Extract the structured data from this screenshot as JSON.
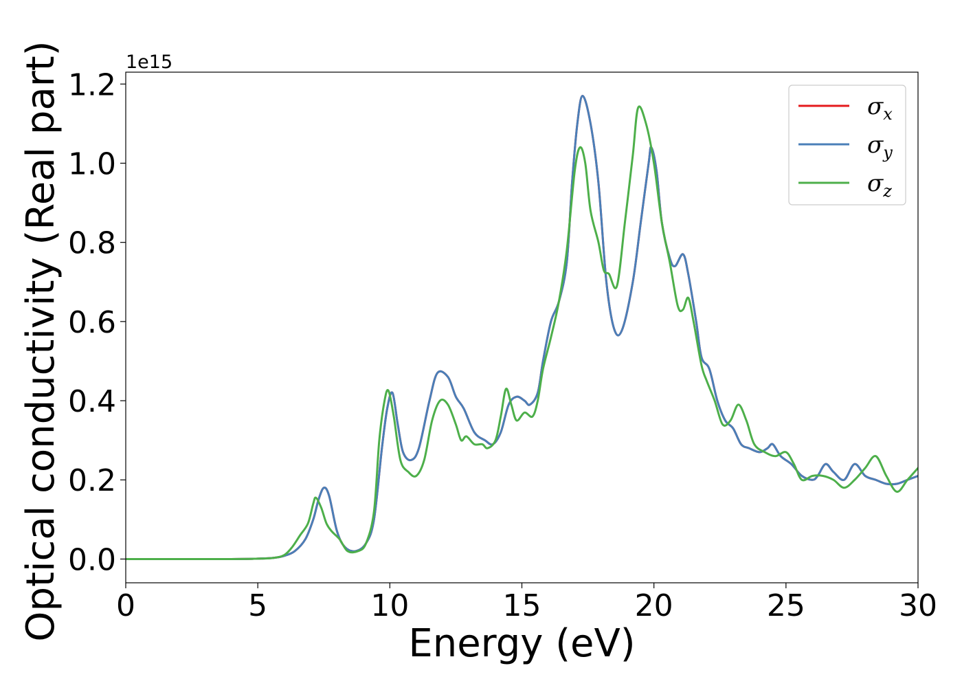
{
  "chart_data": {
    "type": "line",
    "xlabel": "Energy (eV)",
    "ylabel": "Optical conductivity (Real part)",
    "y_offset_label": "1e15",
    "xlim": [
      0,
      30
    ],
    "ylim": [
      -0.06,
      1.23
    ],
    "x_ticks": [
      "0",
      "5",
      "10",
      "15",
      "20",
      "25",
      "30"
    ],
    "y_ticks": [
      "0.0",
      "0.2",
      "0.4",
      "0.6",
      "0.8",
      "1.0",
      "1.2"
    ],
    "x_tick_values": [
      0,
      5,
      10,
      15,
      20,
      25,
      30
    ],
    "y_tick_values": [
      0.0,
      0.2,
      0.4,
      0.6,
      0.8,
      1.0,
      1.2
    ],
    "legend_position": "top-right",
    "grid": false,
    "series": [
      {
        "name": "σx",
        "symbol": "σ",
        "subscript": "x",
        "color": "#e41a1c",
        "points": [
          [
            0,
            0
          ],
          [
            4,
            0
          ],
          [
            5,
            0.001
          ],
          [
            5.6,
            0.003
          ],
          [
            6,
            0.008
          ],
          [
            6.4,
            0.02
          ],
          [
            6.8,
            0.05
          ],
          [
            7.1,
            0.1
          ],
          [
            7.3,
            0.15
          ],
          [
            7.5,
            0.18
          ],
          [
            7.7,
            0.16
          ],
          [
            8,
            0.07
          ],
          [
            8.3,
            0.03
          ],
          [
            8.7,
            0.02
          ],
          [
            9.1,
            0.04
          ],
          [
            9.4,
            0.1
          ],
          [
            9.7,
            0.28
          ],
          [
            9.9,
            0.38
          ],
          [
            10.1,
            0.42
          ],
          [
            10.3,
            0.34
          ],
          [
            10.5,
            0.27
          ],
          [
            10.8,
            0.25
          ],
          [
            11.1,
            0.28
          ],
          [
            11.5,
            0.4
          ],
          [
            11.8,
            0.47
          ],
          [
            12.2,
            0.46
          ],
          [
            12.5,
            0.41
          ],
          [
            12.8,
            0.38
          ],
          [
            13.2,
            0.32
          ],
          [
            13.6,
            0.3
          ],
          [
            13.9,
            0.29
          ],
          [
            14.2,
            0.32
          ],
          [
            14.5,
            0.39
          ],
          [
            14.8,
            0.41
          ],
          [
            15.1,
            0.4
          ],
          [
            15.3,
            0.39
          ],
          [
            15.6,
            0.42
          ],
          [
            15.8,
            0.5
          ],
          [
            16.1,
            0.6
          ],
          [
            16.4,
            0.65
          ],
          [
            16.7,
            0.75
          ],
          [
            16.9,
            0.95
          ],
          [
            17.1,
            1.1
          ],
          [
            17.3,
            1.17
          ],
          [
            17.6,
            1.1
          ],
          [
            17.9,
            0.95
          ],
          [
            18.2,
            0.7
          ],
          [
            18.5,
            0.58
          ],
          [
            18.8,
            0.58
          ],
          [
            19.2,
            0.7
          ],
          [
            19.5,
            0.85
          ],
          [
            19.8,
            1.0
          ],
          [
            19.9,
            1.04
          ],
          [
            20.1,
            0.98
          ],
          [
            20.3,
            0.85
          ],
          [
            20.6,
            0.76
          ],
          [
            20.8,
            0.74
          ],
          [
            21.1,
            0.77
          ],
          [
            21.3,
            0.72
          ],
          [
            21.6,
            0.6
          ],
          [
            21.8,
            0.51
          ],
          [
            22.1,
            0.48
          ],
          [
            22.4,
            0.4
          ],
          [
            22.7,
            0.35
          ],
          [
            23,
            0.33
          ],
          [
            23.3,
            0.29
          ],
          [
            23.6,
            0.28
          ],
          [
            24,
            0.27
          ],
          [
            24.3,
            0.28
          ],
          [
            24.5,
            0.29
          ],
          [
            24.8,
            0.26
          ],
          [
            25.2,
            0.24
          ],
          [
            25.6,
            0.21
          ],
          [
            26,
            0.2
          ],
          [
            26.2,
            0.21
          ],
          [
            26.5,
            0.24
          ],
          [
            26.8,
            0.22
          ],
          [
            27.2,
            0.2
          ],
          [
            27.6,
            0.24
          ],
          [
            28,
            0.21
          ],
          [
            28.4,
            0.2
          ],
          [
            28.8,
            0.19
          ],
          [
            29.2,
            0.19
          ],
          [
            29.6,
            0.2
          ],
          [
            30,
            0.21
          ]
        ]
      },
      {
        "name": "σy",
        "symbol": "σ",
        "subscript": "y",
        "color": "#4a7fb8",
        "points": [
          [
            0,
            0
          ],
          [
            4,
            0
          ],
          [
            5,
            0.001
          ],
          [
            5.6,
            0.003
          ],
          [
            6,
            0.008
          ],
          [
            6.4,
            0.02
          ],
          [
            6.8,
            0.05
          ],
          [
            7.1,
            0.1
          ],
          [
            7.3,
            0.15
          ],
          [
            7.5,
            0.18
          ],
          [
            7.7,
            0.16
          ],
          [
            8,
            0.07
          ],
          [
            8.3,
            0.03
          ],
          [
            8.7,
            0.02
          ],
          [
            9.1,
            0.04
          ],
          [
            9.4,
            0.1
          ],
          [
            9.7,
            0.28
          ],
          [
            9.9,
            0.38
          ],
          [
            10.1,
            0.42
          ],
          [
            10.3,
            0.34
          ],
          [
            10.5,
            0.27
          ],
          [
            10.8,
            0.25
          ],
          [
            11.1,
            0.28
          ],
          [
            11.5,
            0.4
          ],
          [
            11.8,
            0.47
          ],
          [
            12.2,
            0.46
          ],
          [
            12.5,
            0.41
          ],
          [
            12.8,
            0.38
          ],
          [
            13.2,
            0.32
          ],
          [
            13.6,
            0.3
          ],
          [
            13.9,
            0.29
          ],
          [
            14.2,
            0.32
          ],
          [
            14.5,
            0.39
          ],
          [
            14.8,
            0.41
          ],
          [
            15.1,
            0.4
          ],
          [
            15.3,
            0.39
          ],
          [
            15.6,
            0.42
          ],
          [
            15.8,
            0.5
          ],
          [
            16.1,
            0.6
          ],
          [
            16.4,
            0.65
          ],
          [
            16.7,
            0.75
          ],
          [
            16.9,
            0.95
          ],
          [
            17.1,
            1.1
          ],
          [
            17.3,
            1.17
          ],
          [
            17.6,
            1.1
          ],
          [
            17.9,
            0.95
          ],
          [
            18.2,
            0.7
          ],
          [
            18.5,
            0.58
          ],
          [
            18.8,
            0.58
          ],
          [
            19.2,
            0.7
          ],
          [
            19.5,
            0.85
          ],
          [
            19.8,
            1.0
          ],
          [
            19.9,
            1.04
          ],
          [
            20.1,
            0.98
          ],
          [
            20.3,
            0.85
          ],
          [
            20.6,
            0.76
          ],
          [
            20.8,
            0.74
          ],
          [
            21.1,
            0.77
          ],
          [
            21.3,
            0.72
          ],
          [
            21.6,
            0.6
          ],
          [
            21.8,
            0.51
          ],
          [
            22.1,
            0.48
          ],
          [
            22.4,
            0.4
          ],
          [
            22.7,
            0.35
          ],
          [
            23,
            0.33
          ],
          [
            23.3,
            0.29
          ],
          [
            23.6,
            0.28
          ],
          [
            24,
            0.27
          ],
          [
            24.3,
            0.28
          ],
          [
            24.5,
            0.29
          ],
          [
            24.8,
            0.26
          ],
          [
            25.2,
            0.24
          ],
          [
            25.6,
            0.21
          ],
          [
            26,
            0.2
          ],
          [
            26.2,
            0.21
          ],
          [
            26.5,
            0.24
          ],
          [
            26.8,
            0.22
          ],
          [
            27.2,
            0.2
          ],
          [
            27.6,
            0.24
          ],
          [
            28,
            0.21
          ],
          [
            28.4,
            0.2
          ],
          [
            28.8,
            0.19
          ],
          [
            29.2,
            0.19
          ],
          [
            29.6,
            0.2
          ],
          [
            30,
            0.21
          ]
        ]
      },
      {
        "name": "σz",
        "symbol": "σ",
        "subscript": "z",
        "color": "#4daf4a",
        "points": [
          [
            0,
            0
          ],
          [
            4,
            0
          ],
          [
            5,
            0.001
          ],
          [
            5.6,
            0.003
          ],
          [
            6,
            0.01
          ],
          [
            6.3,
            0.03
          ],
          [
            6.6,
            0.06
          ],
          [
            6.9,
            0.09
          ],
          [
            7.1,
            0.14
          ],
          [
            7.2,
            0.155
          ],
          [
            7.4,
            0.13
          ],
          [
            7.6,
            0.09
          ],
          [
            7.8,
            0.07
          ],
          [
            8.1,
            0.05
          ],
          [
            8.4,
            0.02
          ],
          [
            8.8,
            0.02
          ],
          [
            9.1,
            0.04
          ],
          [
            9.4,
            0.12
          ],
          [
            9.6,
            0.3
          ],
          [
            9.8,
            0.4
          ],
          [
            9.95,
            0.425
          ],
          [
            10.15,
            0.36
          ],
          [
            10.4,
            0.25
          ],
          [
            10.7,
            0.22
          ],
          [
            11,
            0.21
          ],
          [
            11.3,
            0.25
          ],
          [
            11.6,
            0.35
          ],
          [
            11.9,
            0.4
          ],
          [
            12.2,
            0.39
          ],
          [
            12.5,
            0.34
          ],
          [
            12.7,
            0.3
          ],
          [
            12.9,
            0.31
          ],
          [
            13.2,
            0.29
          ],
          [
            13.5,
            0.29
          ],
          [
            13.7,
            0.28
          ],
          [
            14,
            0.3
          ],
          [
            14.2,
            0.36
          ],
          [
            14.4,
            0.43
          ],
          [
            14.6,
            0.39
          ],
          [
            14.8,
            0.35
          ],
          [
            15.1,
            0.37
          ],
          [
            15.4,
            0.36
          ],
          [
            15.6,
            0.4
          ],
          [
            15.8,
            0.48
          ],
          [
            16.1,
            0.56
          ],
          [
            16.4,
            0.65
          ],
          [
            16.7,
            0.78
          ],
          [
            17,
            0.98
          ],
          [
            17.2,
            1.04
          ],
          [
            17.4,
            1.0
          ],
          [
            17.6,
            0.88
          ],
          [
            17.9,
            0.8
          ],
          [
            18.1,
            0.73
          ],
          [
            18.3,
            0.72
          ],
          [
            18.6,
            0.69
          ],
          [
            18.9,
            0.85
          ],
          [
            19.2,
            1.02
          ],
          [
            19.4,
            1.14
          ],
          [
            19.7,
            1.1
          ],
          [
            20,
            1.0
          ],
          [
            20.3,
            0.85
          ],
          [
            20.6,
            0.75
          ],
          [
            20.9,
            0.64
          ],
          [
            21.1,
            0.63
          ],
          [
            21.3,
            0.66
          ],
          [
            21.5,
            0.6
          ],
          [
            21.8,
            0.49
          ],
          [
            22,
            0.45
          ],
          [
            22.3,
            0.4
          ],
          [
            22.6,
            0.34
          ],
          [
            22.9,
            0.35
          ],
          [
            23.2,
            0.39
          ],
          [
            23.5,
            0.35
          ],
          [
            23.8,
            0.29
          ],
          [
            24.2,
            0.27
          ],
          [
            24.6,
            0.26
          ],
          [
            25,
            0.27
          ],
          [
            25.3,
            0.24
          ],
          [
            25.6,
            0.2
          ],
          [
            26,
            0.21
          ],
          [
            26.4,
            0.21
          ],
          [
            26.8,
            0.2
          ],
          [
            27.2,
            0.18
          ],
          [
            27.6,
            0.2
          ],
          [
            28,
            0.23
          ],
          [
            28.4,
            0.26
          ],
          [
            28.8,
            0.21
          ],
          [
            29.2,
            0.17
          ],
          [
            29.6,
            0.2
          ],
          [
            30,
            0.23
          ]
        ]
      }
    ]
  }
}
